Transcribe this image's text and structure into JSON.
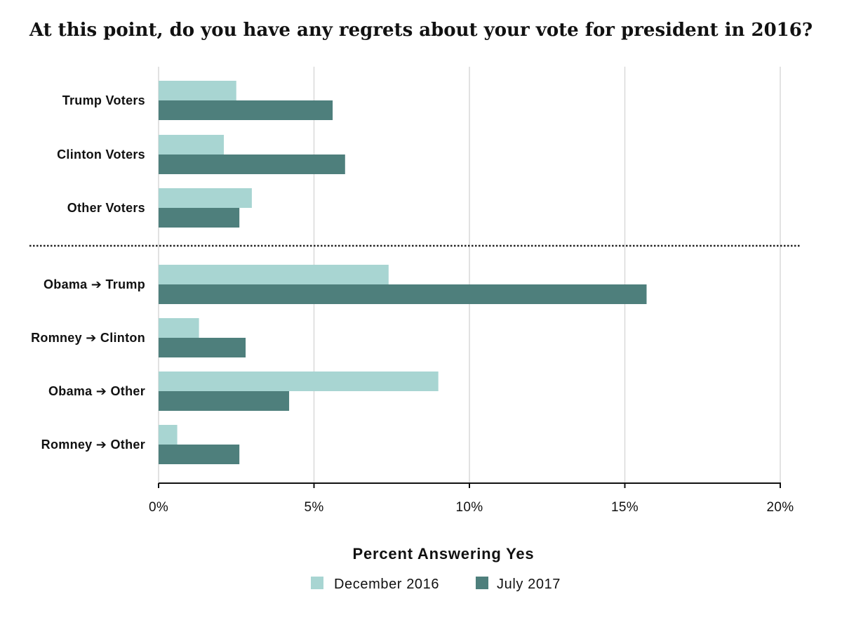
{
  "chart_data": {
    "type": "bar",
    "orientation": "horizontal",
    "title": "At this point, do you have any regrets about your vote for president in 2016?",
    "xlabel": "Percent Answering Yes",
    "xlim": [
      0,
      20
    ],
    "xticks": [
      "0%",
      "5%",
      "10%",
      "15%",
      "20%"
    ],
    "xtick_values": [
      0,
      5,
      10,
      15,
      20
    ],
    "grid": true,
    "legend_placement": "bottom-center",
    "groups": [
      {
        "categories": [
          "Trump Voters",
          "Clinton Voters",
          "Other Voters"
        ]
      },
      {
        "categories": [
          {
            "from": "Obama",
            "to": "Trump"
          },
          {
            "from": "Romney",
            "to": "Clinton"
          },
          {
            "from": "Obama",
            "to": "Other"
          },
          {
            "from": "Romney",
            "to": "Other"
          }
        ]
      }
    ],
    "series": [
      {
        "name": "December 2016",
        "color": "#a8d5d2",
        "values": [
          2.5,
          2.1,
          3.0,
          7.4,
          1.3,
          9.0,
          0.6
        ]
      },
      {
        "name": "July 2017",
        "color": "#4e7f7c",
        "values": [
          5.6,
          6.0,
          2.6,
          15.7,
          2.8,
          4.2,
          2.6
        ]
      }
    ]
  }
}
